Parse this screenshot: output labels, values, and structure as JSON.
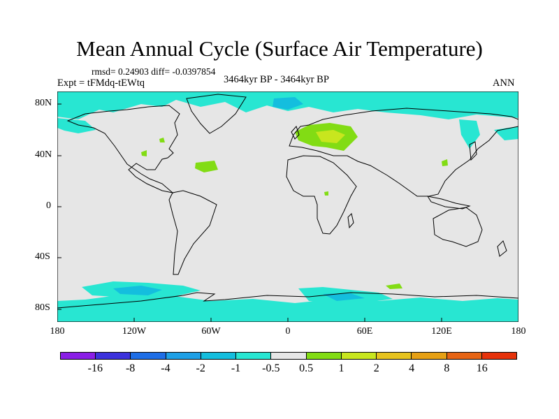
{
  "title": "Mean Annual Cycle (Surface Air Temperature)",
  "stats": "rmsd= 0.24903 diff= -0.0397854",
  "experiment": "Expt = tFMdq-tEWtq",
  "period": "3464kyr BP - 3464kyr BP",
  "season": "ANN",
  "map": {
    "lat_labels": [
      "80N",
      "40N",
      "0",
      "40S",
      "80S"
    ],
    "lon_labels": [
      "180",
      "120W",
      "60W",
      "0",
      "60E",
      "120E",
      "180"
    ],
    "background_color": "#e6e6e6"
  },
  "colorbar": {
    "colors": [
      "#8a1ee6",
      "#3c32dc",
      "#1e6ee6",
      "#1ea0e6",
      "#14bede",
      "#28e6d2",
      "#e6e6e6",
      "#82dc14",
      "#c8e61e",
      "#e6c31e",
      "#e6a014",
      "#e66414",
      "#e6320a"
    ],
    "labels": [
      "-16",
      "-8",
      "-4",
      "-2",
      "-1",
      "-0.5",
      "0.5",
      "1",
      "2",
      "4",
      "8",
      "16"
    ]
  }
}
